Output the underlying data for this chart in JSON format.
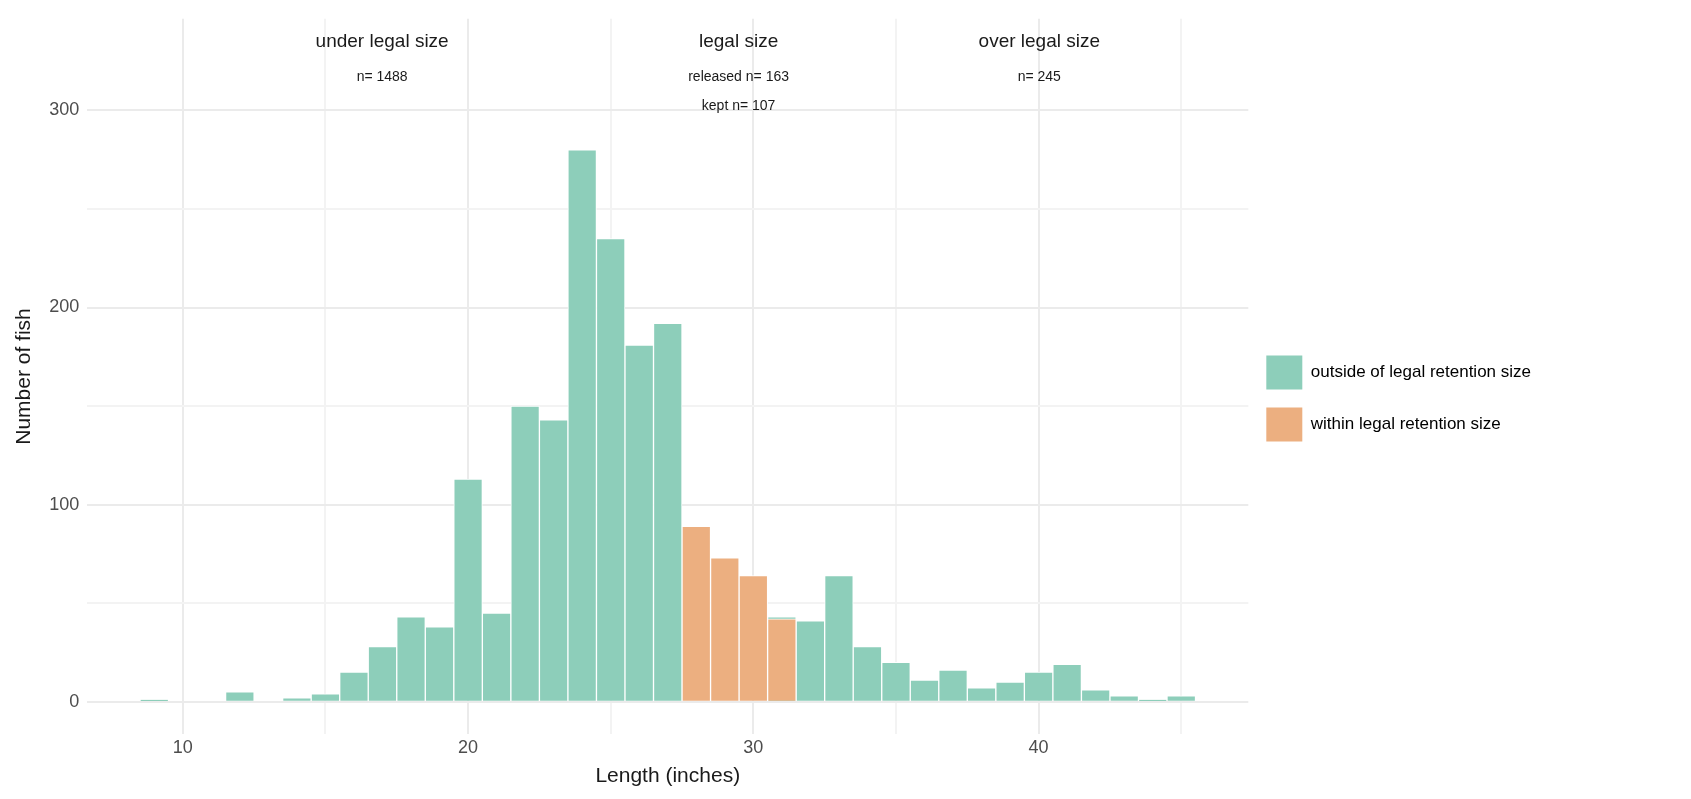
{
  "chart_data": {
    "type": "bar",
    "xlabel": "Length (inches)",
    "ylabel": "Number of fish",
    "x": [
      9,
      10,
      11,
      12,
      13,
      14,
      15,
      16,
      17,
      18,
      19,
      20,
      21,
      22,
      23,
      24,
      25,
      26,
      27,
      28,
      29,
      30,
      31,
      32,
      33,
      34,
      35,
      36,
      37,
      38,
      39,
      40,
      41,
      42,
      43,
      44,
      45
    ],
    "series": [
      {
        "name": "outside of legal retention size",
        "color": "#8dceba",
        "values": [
          1,
          0,
          0,
          5,
          0,
          2,
          4,
          15,
          28,
          43,
          38,
          113,
          45,
          150,
          143,
          280,
          235,
          181,
          192,
          null,
          null,
          null,
          43,
          41,
          64,
          28,
          20,
          11,
          16,
          7,
          10,
          15,
          19,
          6,
          3,
          1,
          3
        ]
      },
      {
        "name": "within legal retention size",
        "color": "#ecaf80",
        "values": [
          null,
          null,
          null,
          null,
          null,
          null,
          null,
          null,
          null,
          null,
          null,
          null,
          null,
          null,
          null,
          null,
          null,
          null,
          null,
          89,
          73,
          64,
          42,
          null,
          null,
          null,
          null,
          null,
          null,
          null,
          null,
          null,
          null,
          null,
          null,
          null,
          null
        ]
      }
    ],
    "xlim": [
      6.65,
      47.35
    ],
    "xticks": [
      10,
      {
        "value": 15,
        "label": null
      },
      20,
      {
        "value": 25,
        "label": null
      },
      30,
      {
        "value": 35,
        "label": null
      },
      40,
      {
        "value": 45,
        "label": null
      }
    ],
    "ylim": [
      -16.5,
      346.5
    ],
    "yticks": [
      0,
      {
        "value": 50,
        "label": null
      },
      100,
      {
        "value": 150,
        "label": null
      },
      200,
      {
        "value": 250,
        "label": null
      },
      300
    ],
    "grid": true,
    "legend": "right",
    "annotations": [
      "under legal size",
      "n= 1488",
      "legal size",
      "released n= 163",
      "kept n= 107",
      "over legal size",
      "n= 245"
    ]
  }
}
